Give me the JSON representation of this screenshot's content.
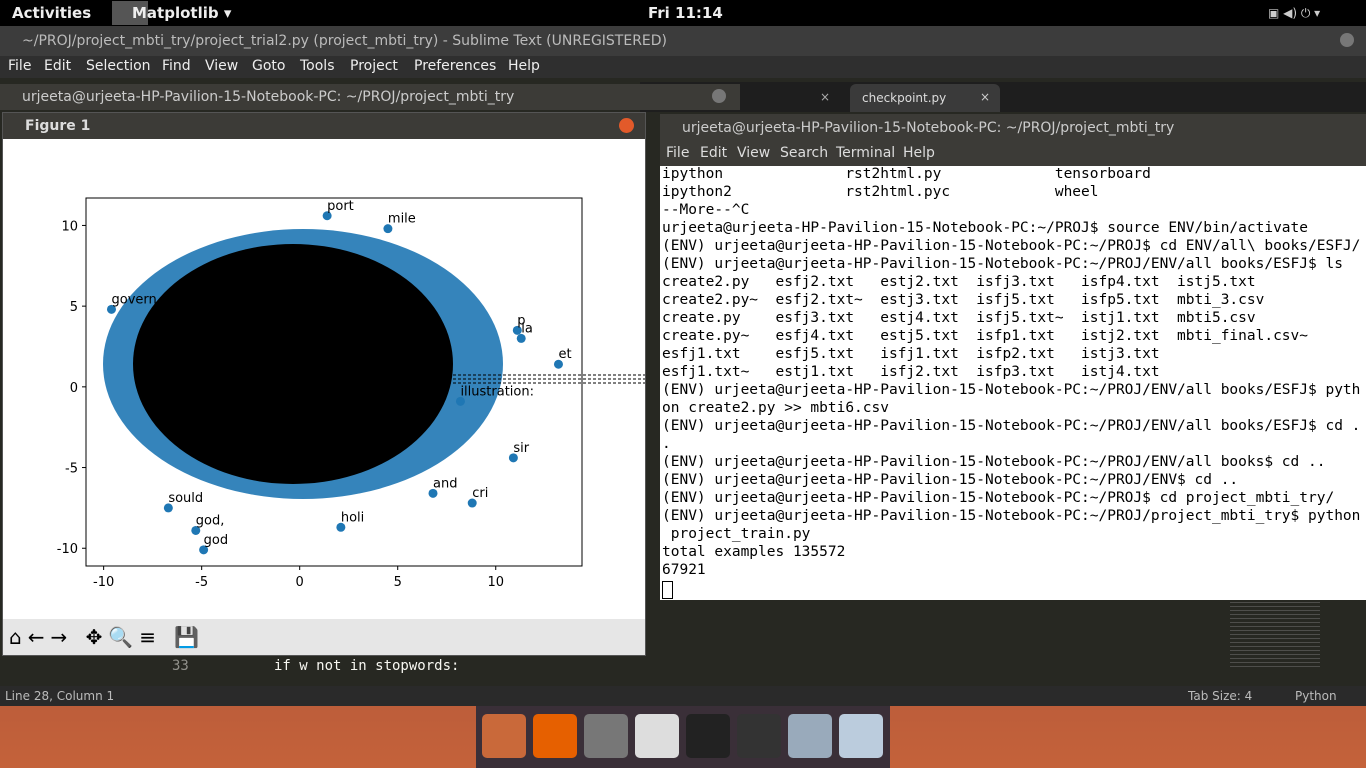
{
  "topbar": {
    "activities": "Activities",
    "app": "Matplotlib ▾",
    "clock": "Fri 11:14"
  },
  "sublime": {
    "title": "~/PROJ/project_mbti_try/project_trial2.py (project_mbti_try) - Sublime Text (UNREGISTERED)",
    "menu": [
      "File",
      "Edit",
      "Selection",
      "Find",
      "View",
      "Goto",
      "Tools",
      "Project",
      "Preferences",
      "Help"
    ],
    "tabs": [
      ":",
      "checkpoint.py"
    ],
    "line_number": "33",
    "code": "if w not in stopwords:",
    "status": {
      "position": "Line 28, Column 1",
      "tab_size": "Tab Size: 4",
      "syntax": "Python"
    }
  },
  "back_terminal": {
    "title": "urjeeta@urjeeta-HP-Pavilion-15-Notebook-PC: ~/PROJ/project_mbti_try"
  },
  "terminal": {
    "title": "urjeeta@urjeeta-HP-Pavilion-15-Notebook-PC: ~/PROJ/project_mbti_try",
    "menu": [
      "File",
      "Edit",
      "View",
      "Search",
      "Terminal",
      "Help"
    ],
    "lines": [
      "ipython              rst2html.py             tensorboard",
      "ipython2             rst2html.pyc            wheel",
      "--More--^C",
      "urjeeta@urjeeta-HP-Pavilion-15-Notebook-PC:~/PROJ$ source ENV/bin/activate",
      "(ENV) urjeeta@urjeeta-HP-Pavilion-15-Notebook-PC:~/PROJ$ cd ENV/all\\ books/ESFJ/",
      "(ENV) urjeeta@urjeeta-HP-Pavilion-15-Notebook-PC:~/PROJ/ENV/all books/ESFJ$ ls",
      "create2.py   esfj2.txt   estj2.txt  isfj3.txt   isfp4.txt  istj5.txt",
      "create2.py~  esfj2.txt~  estj3.txt  isfj5.txt   isfp5.txt  mbti_3.csv",
      "create.py    esfj3.txt   estj4.txt  isfj5.txt~  istj1.txt  mbti5.csv",
      "create.py~   esfj4.txt   estj5.txt  isfp1.txt   istj2.txt  mbti_final.csv~",
      "esfj1.txt    esfj5.txt   isfj1.txt  isfp2.txt   istj3.txt",
      "esfj1.txt~   estj1.txt   isfj2.txt  isfp3.txt   istj4.txt",
      "(ENV) urjeeta@urjeeta-HP-Pavilion-15-Notebook-PC:~/PROJ/ENV/all books/ESFJ$ pyth",
      "on create2.py >> mbti6.csv",
      "(ENV) urjeeta@urjeeta-HP-Pavilion-15-Notebook-PC:~/PROJ/ENV/all books/ESFJ$ cd .",
      ".",
      "(ENV) urjeeta@urjeeta-HP-Pavilion-15-Notebook-PC:~/PROJ/ENV/all books$ cd ..",
      "(ENV) urjeeta@urjeeta-HP-Pavilion-15-Notebook-PC:~/PROJ/ENV$ cd ..",
      "(ENV) urjeeta@urjeeta-HP-Pavilion-15-Notebook-PC:~/PROJ$ cd project_mbti_try/",
      "(ENV) urjeeta@urjeeta-HP-Pavilion-15-Notebook-PC:~/PROJ/project_mbti_try$ python",
      " project_train.py",
      "total examples 135572",
      "67921"
    ]
  },
  "figure": {
    "title": "Figure 1",
    "plot": {
      "type": "scatter",
      "xlim": [
        -10.9,
        14.4
      ],
      "ylim": [
        -11.1,
        11.7
      ],
      "xticks": [
        -10,
        -5,
        0,
        5,
        10
      ],
      "yticks": [
        -10,
        -5,
        0,
        5,
        10
      ],
      "color": "#1f77b4",
      "points": [
        {
          "label": "port",
          "x": 1.4,
          "y": 10.6
        },
        {
          "label": "mile",
          "x": 4.5,
          "y": 9.8
        },
        {
          "label": "et",
          "x": 13.2,
          "y": 1.4
        },
        {
          "label": "p",
          "x": 11.1,
          "y": 3.5
        },
        {
          "label": "la",
          "x": 11.3,
          "y": 3.0
        },
        {
          "label": "sir",
          "x": 10.9,
          "y": -4.4
        },
        {
          "label": "cri",
          "x": 8.8,
          "y": -7.2
        },
        {
          "label": "and",
          "x": 6.8,
          "y": -6.6
        },
        {
          "label": "illustration:",
          "x": 8.2,
          "y": -0.9
        },
        {
          "label": "god",
          "x": -4.9,
          "y": -10.1
        },
        {
          "label": "god,",
          "x": -5.3,
          "y": -8.9
        },
        {
          "label": "govern",
          "x": -9.6,
          "y": 4.8
        },
        {
          "label": "holi",
          "x": 2.1,
          "y": -8.7
        },
        {
          "label": "sould",
          "x": -6.7,
          "y": -7.5
        }
      ]
    }
  }
}
